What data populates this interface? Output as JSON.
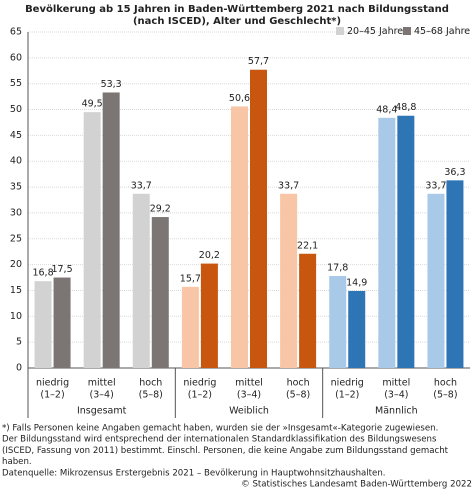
{
  "chart_data": {
    "type": "bar",
    "title": [
      "Bevölkerung ab 15 Jahren in Baden-Württemberg 2021 nach Bildungsstand",
      "(nach ISCED), Alter und Geschlecht*)"
    ],
    "categories": [
      [
        "niedrig",
        "(1–2)"
      ],
      [
        "mittel",
        "(3–4)"
      ],
      [
        "hoch",
        "(5–8)"
      ],
      [
        "niedrig",
        "(1–2)"
      ],
      [
        "mittel",
        "(3–4)"
      ],
      [
        "hoch",
        "(5–8)"
      ],
      [
        "niedrig",
        "(1–2)"
      ],
      [
        "mittel",
        "(3–4)"
      ],
      [
        "hoch",
        "(5–8)"
      ]
    ],
    "groups": [
      {
        "label": "Insgesamt",
        "colors": [
          "#d3d2d2",
          "#7b7574"
        ]
      },
      {
        "label": "Weiblich",
        "colors": [
          "#f8c6a6",
          "#c8560e"
        ]
      },
      {
        "label": "Männlich",
        "colors": [
          "#a9c9e9",
          "#2e75b6"
        ]
      }
    ],
    "series": [
      {
        "name": "20–45 Jahre",
        "color": "#d3d2d2",
        "values": [
          16.8,
          49.5,
          33.7,
          15.7,
          50.6,
          33.7,
          17.8,
          48.4,
          33.7
        ],
        "value_labels": [
          "16,8",
          "49,5",
          "33,7",
          "15,7",
          "50,6",
          "33,7",
          "17,8",
          "48,4",
          "33,7"
        ]
      },
      {
        "name": "45–68 Jahre",
        "color": "#7b7574",
        "values": [
          17.5,
          53.3,
          29.2,
          20.2,
          57.7,
          22.1,
          14.9,
          48.8,
          36.3
        ],
        "value_labels": [
          "17,5",
          "53,3",
          "29,2",
          "20,2",
          "57,7",
          "22,1",
          "14,9",
          "48,8",
          "36,3"
        ]
      }
    ],
    "ylim": [
      0,
      65
    ],
    "yticks": [
      0,
      5,
      10,
      15,
      20,
      25,
      30,
      35,
      40,
      45,
      50,
      55,
      60,
      65
    ],
    "grid": true,
    "footnotes": [
      "*) Falls Personen keine Angaben gemacht haben, wurden sie der »Insgesamt«-Kategorie zugewiesen.",
      "Der Bildungsstand wird entsprechend der internationalen Standardklassifikation des Bildungswesens",
      "(ISCED, Fassung von 2011) bestimmt.  Einschl. Personen, die keine Angabe zum Bildungsstand gemacht",
      "haben.",
      "Datenquelle: Mikrozensus Erstergebnis 2021 – Bevölkerung in Hauptwohnsitzhaushalten."
    ],
    "source": "© Statistisches Landesamt Baden-Württemberg 2022"
  }
}
